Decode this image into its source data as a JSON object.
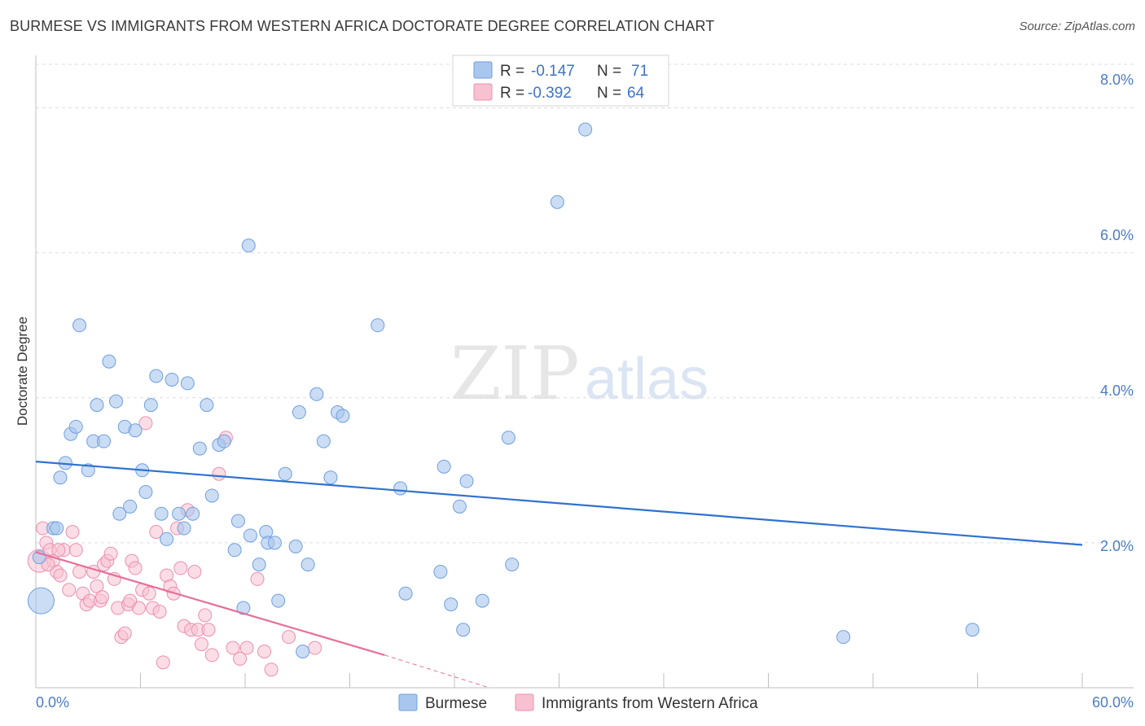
{
  "header": {
    "title": "BURMESE VS IMMIGRANTS FROM WESTERN AFRICA DOCTORATE DEGREE CORRELATION CHART",
    "source": "Source: ZipAtlas.com"
  },
  "watermark": {
    "zip": "ZIP",
    "atlas": "atlas"
  },
  "colors": {
    "blue_fill": "#a9c7ee",
    "blue_stroke": "#6f9fdc",
    "blue_line": "#2f72cf",
    "pink_fill": "#f7c1d1",
    "pink_stroke": "#ec8fae",
    "pink_line": "#e5709a",
    "tick_text": "#4a7cc9",
    "grid": "#dddddd"
  },
  "legend": {
    "r_label": "R =",
    "n_label": "N =",
    "rows": [
      {
        "r": "-0.147",
        "n": "71"
      },
      {
        "r": "-0.392",
        "n": "64"
      }
    ]
  },
  "chart_data": {
    "type": "scatter",
    "title": "BURMESE VS IMMIGRANTS FROM WESTERN AFRICA DOCTORATE DEGREE CORRELATION CHART",
    "xlabel": "",
    "ylabel": "Doctorate Degree",
    "xlim": [
      0,
      60
    ],
    "ylim": [
      0,
      8.6
    ],
    "x_tick_labels": [
      "0.0%",
      "60.0%"
    ],
    "y_ticks": [
      2,
      4,
      6,
      8
    ],
    "y_tick_labels": [
      "2.0%",
      "4.0%",
      "6.0%",
      "8.0%"
    ],
    "grid": true,
    "legend_position": "top-center",
    "series": [
      {
        "name": "Burmese",
        "color": "#a9c7ee",
        "R": -0.147,
        "N": 71,
        "trend": {
          "x": [
            0,
            60
          ],
          "y": [
            3.12,
            1.97
          ]
        },
        "points": [
          [
            0.2,
            1.8
          ],
          [
            0.3,
            1.2
          ],
          [
            1.0,
            2.2
          ],
          [
            1.2,
            2.2
          ],
          [
            1.4,
            2.9
          ],
          [
            1.7,
            3.1
          ],
          [
            2.0,
            3.5
          ],
          [
            2.3,
            3.6
          ],
          [
            2.5,
            5.0
          ],
          [
            3.0,
            3.0
          ],
          [
            3.3,
            3.4
          ],
          [
            3.5,
            3.9
          ],
          [
            3.9,
            3.4
          ],
          [
            4.2,
            4.5
          ],
          [
            4.6,
            3.95
          ],
          [
            4.8,
            2.4
          ],
          [
            5.1,
            3.6
          ],
          [
            5.4,
            2.5
          ],
          [
            5.7,
            3.55
          ],
          [
            6.1,
            3.0
          ],
          [
            6.3,
            2.7
          ],
          [
            6.6,
            3.9
          ],
          [
            6.9,
            4.3
          ],
          [
            7.2,
            2.4
          ],
          [
            7.5,
            2.05
          ],
          [
            7.8,
            4.25
          ],
          [
            8.2,
            2.4
          ],
          [
            8.5,
            2.2
          ],
          [
            8.7,
            4.2
          ],
          [
            9.0,
            2.4
          ],
          [
            9.4,
            3.3
          ],
          [
            9.8,
            3.9
          ],
          [
            10.1,
            2.65
          ],
          [
            10.5,
            3.35
          ],
          [
            10.8,
            3.4
          ],
          [
            11.4,
            1.9
          ],
          [
            11.6,
            2.3
          ],
          [
            11.9,
            1.1
          ],
          [
            12.3,
            2.1
          ],
          [
            12.2,
            6.1
          ],
          [
            12.8,
            1.7
          ],
          [
            13.2,
            2.15
          ],
          [
            13.3,
            2.0
          ],
          [
            13.7,
            2.0
          ],
          [
            13.9,
            1.2
          ],
          [
            14.3,
            2.95
          ],
          [
            14.9,
            1.95
          ],
          [
            15.1,
            3.8
          ],
          [
            15.3,
            0.5
          ],
          [
            15.6,
            1.7
          ],
          [
            16.1,
            4.05
          ],
          [
            16.5,
            3.4
          ],
          [
            16.9,
            2.9
          ],
          [
            17.3,
            3.8
          ],
          [
            17.6,
            3.75
          ],
          [
            19.6,
            5.0
          ],
          [
            20.9,
            2.75
          ],
          [
            21.2,
            1.3
          ],
          [
            23.2,
            1.6
          ],
          [
            23.4,
            3.05
          ],
          [
            23.8,
            1.15
          ],
          [
            24.3,
            2.5
          ],
          [
            24.5,
            0.8
          ],
          [
            24.7,
            2.85
          ],
          [
            25.6,
            1.2
          ],
          [
            27.1,
            3.45
          ],
          [
            27.3,
            1.7
          ],
          [
            29.9,
            6.7
          ],
          [
            46.3,
            0.7
          ],
          [
            53.7,
            0.8
          ],
          [
            31.5,
            7.7
          ]
        ]
      },
      {
        "name": "Immigrants from Western Africa",
        "color": "#f7c1d1",
        "R": -0.392,
        "N": 64,
        "trend": {
          "x": [
            0,
            20
          ],
          "y": [
            1.87,
            0.45
          ],
          "dashed_to": {
            "x": 26,
            "y": 0.0
          }
        },
        "points": [
          [
            0.2,
            1.75
          ],
          [
            0.4,
            2.2
          ],
          [
            0.6,
            2.0
          ],
          [
            0.8,
            1.9
          ],
          [
            1.0,
            1.75
          ],
          [
            1.2,
            1.6
          ],
          [
            1.4,
            1.55
          ],
          [
            1.6,
            1.9
          ],
          [
            1.9,
            1.35
          ],
          [
            2.1,
            2.15
          ],
          [
            2.3,
            1.9
          ],
          [
            2.5,
            1.6
          ],
          [
            2.7,
            1.3
          ],
          [
            2.9,
            1.15
          ],
          [
            3.1,
            1.2
          ],
          [
            3.3,
            1.6
          ],
          [
            3.5,
            1.4
          ],
          [
            3.7,
            1.2
          ],
          [
            3.9,
            1.7
          ],
          [
            4.1,
            1.75
          ],
          [
            4.3,
            1.85
          ],
          [
            4.5,
            1.5
          ],
          [
            4.7,
            1.1
          ],
          [
            4.9,
            0.7
          ],
          [
            5.1,
            0.75
          ],
          [
            5.3,
            1.15
          ],
          [
            5.5,
            1.75
          ],
          [
            5.7,
            1.65
          ],
          [
            5.9,
            1.1
          ],
          [
            6.1,
            1.35
          ],
          [
            6.3,
            3.65
          ],
          [
            6.5,
            1.3
          ],
          [
            6.7,
            1.1
          ],
          [
            6.9,
            2.15
          ],
          [
            7.1,
            1.05
          ],
          [
            7.3,
            0.35
          ],
          [
            7.5,
            1.55
          ],
          [
            7.7,
            1.4
          ],
          [
            7.9,
            1.3
          ],
          [
            8.1,
            2.2
          ],
          [
            8.3,
            1.65
          ],
          [
            8.5,
            0.85
          ],
          [
            8.7,
            2.45
          ],
          [
            8.9,
            0.8
          ],
          [
            9.1,
            1.6
          ],
          [
            9.3,
            0.8
          ],
          [
            9.5,
            0.6
          ],
          [
            9.7,
            1.0
          ],
          [
            9.9,
            0.8
          ],
          [
            10.1,
            0.45
          ],
          [
            10.5,
            2.95
          ],
          [
            10.9,
            3.45
          ],
          [
            11.3,
            0.55
          ],
          [
            11.7,
            0.4
          ],
          [
            12.1,
            0.55
          ],
          [
            13.1,
            0.5
          ],
          [
            12.7,
            1.5
          ],
          [
            13.5,
            0.25
          ],
          [
            14.5,
            0.7
          ],
          [
            16.0,
            0.55
          ],
          [
            0.7,
            1.7
          ],
          [
            1.3,
            1.9
          ],
          [
            3.8,
            1.25
          ],
          [
            5.4,
            1.2
          ]
        ]
      }
    ]
  },
  "bottom_legend": {
    "items": [
      {
        "label": "Burmese"
      },
      {
        "label": "Immigrants from Western Africa"
      }
    ]
  }
}
